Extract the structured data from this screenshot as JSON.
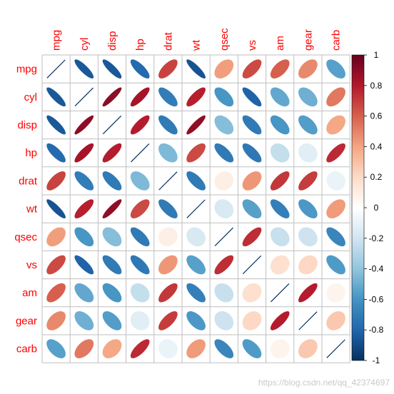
{
  "chart_data": {
    "type": "heatmap",
    "method": "ellipse",
    "variables": [
      "mpg",
      "cyl",
      "disp",
      "hp",
      "drat",
      "wt",
      "qsec",
      "vs",
      "am",
      "gear",
      "carb"
    ],
    "matrix": [
      [
        1.0,
        -0.85,
        -0.85,
        -0.78,
        0.68,
        -0.87,
        0.42,
        0.66,
        0.6,
        0.48,
        -0.55
      ],
      [
        -0.85,
        1.0,
        0.9,
        0.83,
        -0.7,
        0.78,
        -0.59,
        -0.81,
        -0.52,
        -0.49,
        0.53
      ],
      [
        -0.85,
        0.9,
        1.0,
        0.79,
        -0.71,
        0.89,
        -0.43,
        -0.71,
        -0.59,
        -0.56,
        0.39
      ],
      [
        -0.78,
        0.83,
        0.79,
        1.0,
        -0.45,
        0.66,
        -0.71,
        -0.72,
        -0.24,
        -0.13,
        0.75
      ],
      [
        0.68,
        -0.7,
        -0.71,
        -0.45,
        1.0,
        -0.71,
        0.09,
        0.44,
        0.71,
        0.7,
        -0.09
      ],
      [
        -0.87,
        0.78,
        0.89,
        0.66,
        -0.71,
        1.0,
        -0.17,
        -0.55,
        -0.69,
        -0.58,
        0.43
      ],
      [
        0.42,
        -0.59,
        -0.43,
        -0.71,
        0.09,
        -0.17,
        1.0,
        0.74,
        -0.23,
        -0.21,
        -0.66
      ],
      [
        0.66,
        -0.81,
        -0.71,
        -0.72,
        0.44,
        -0.55,
        0.74,
        1.0,
        0.17,
        0.21,
        -0.57
      ],
      [
        0.6,
        -0.52,
        -0.59,
        -0.24,
        0.71,
        -0.69,
        -0.23,
        0.17,
        1.0,
        0.79,
        0.06
      ],
      [
        0.48,
        -0.49,
        -0.56,
        -0.13,
        0.7,
        -0.58,
        -0.21,
        0.21,
        0.79,
        1.0,
        0.27
      ],
      [
        -0.55,
        0.53,
        0.39,
        0.75,
        -0.09,
        0.43,
        -0.66,
        -0.57,
        0.06,
        0.27,
        1.0
      ]
    ],
    "colorbar": {
      "range": [
        -1,
        1
      ],
      "ticks": [
        "1",
        "0.8",
        "0.6",
        "0.4",
        "0.2",
        "0",
        "-0.2",
        "-0.4",
        "-0.6",
        "-0.8",
        "-1"
      ],
      "colors": [
        "#67001F",
        "#B2182B",
        "#D6604D",
        "#F4A582",
        "#FDDBC7",
        "#FFFFFF",
        "#D1E5F0",
        "#92C5DE",
        "#4393C3",
        "#2166AC",
        "#053061"
      ]
    },
    "label_color": "#FF0000",
    "grid": true
  },
  "watermark": "https://blog.csdn.net/qq_42374697"
}
